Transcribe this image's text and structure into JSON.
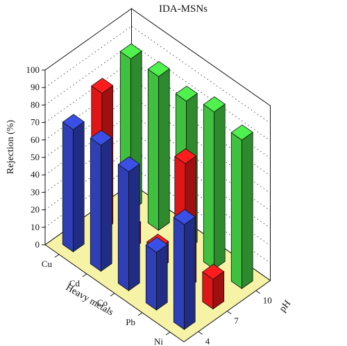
{
  "chart_data": {
    "type": "bar3d",
    "title": "IDA-MSNs",
    "zlabel": "Rejection (%)",
    "xlabel": "Heavy metals",
    "ylabel": "pH",
    "zlim": [
      0,
      100
    ],
    "z_ticks": [
      "0",
      "10",
      "20",
      "30",
      "40",
      "50",
      "60",
      "70",
      "80",
      "90",
      "100"
    ],
    "metals": [
      "Cu",
      "Cd",
      "Co",
      "Pb",
      "Ni"
    ],
    "ph_values": [
      "4",
      "7",
      "10"
    ],
    "grid": true,
    "floor_color": "#f7f3a6",
    "series": [
      {
        "ph": "4",
        "color": "#2e3fb8",
        "values": [
          70,
          72,
          68,
          33,
          60
        ]
      },
      {
        "ph": "7",
        "color": "#e01616",
        "values": [
          79,
          12,
          12,
          72,
          17
        ]
      },
      {
        "ph": "10",
        "color": "#3fc13f",
        "values": [
          87,
          88,
          85,
          90,
          85
        ]
      }
    ]
  }
}
